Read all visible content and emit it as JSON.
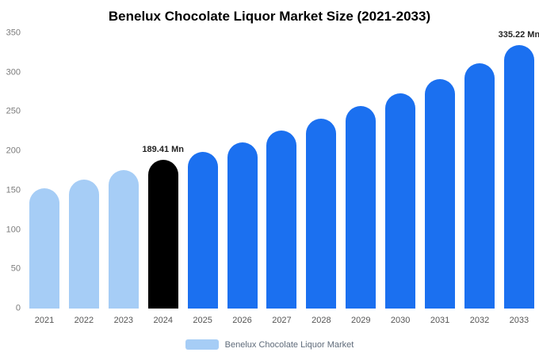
{
  "chart_data": {
    "type": "bar",
    "title": "Benelux Chocolate Liquor Market Size (2021-2033)",
    "categories": [
      "2021",
      "2022",
      "2023",
      "2024",
      "2025",
      "2026",
      "2027",
      "2028",
      "2029",
      "2030",
      "2031",
      "2032",
      "2033"
    ],
    "values": [
      153,
      164,
      176,
      189.41,
      199,
      211,
      226,
      241,
      257,
      274,
      292,
      312,
      335.22
    ],
    "bar_colors": [
      "#a6cdf6",
      "#a6cdf6",
      "#a6cdf6",
      "#000000",
      "#1b70f0",
      "#1b70f0",
      "#1b70f0",
      "#1b70f0",
      "#1b70f0",
      "#1b70f0",
      "#1b70f0",
      "#1b70f0",
      "#1b70f0"
    ],
    "data_labels": {
      "3": "189.41 Mn",
      "12": "335.22 Mn"
    },
    "ylim": [
      0,
      350
    ],
    "y_ticks": [
      0,
      50,
      100,
      150,
      200,
      250,
      300,
      350
    ],
    "grid": false,
    "legend": {
      "position": "bottom",
      "label": "Benelux Chocolate Liquor Market",
      "swatch_color": "#a6cdf6"
    }
  }
}
